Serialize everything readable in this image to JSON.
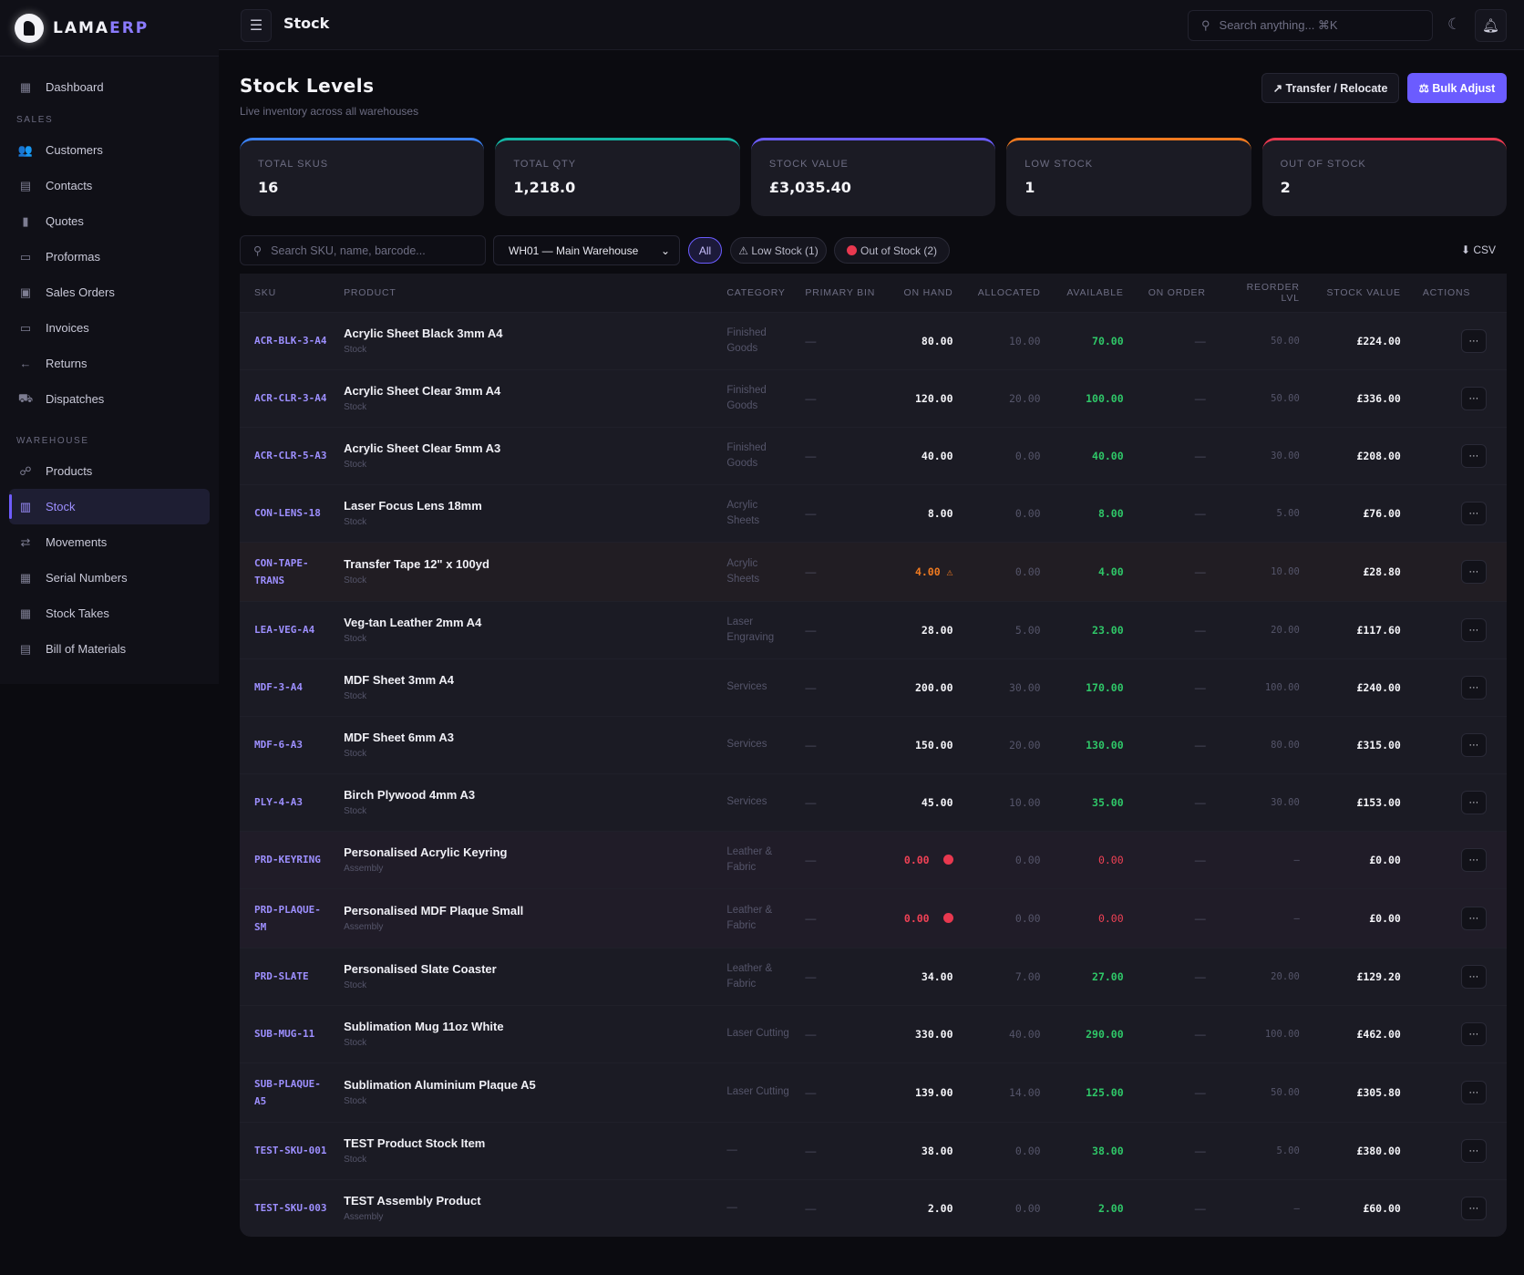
{
  "brand": {
    "name_a": "LAMA",
    "name_b": "ERP"
  },
  "sidebar": {
    "dashboard": "Dashboard",
    "sections": [
      {
        "title": "SALES",
        "items": [
          {
            "label": "Customers",
            "icon": "users-icon",
            "glyph": "👥"
          },
          {
            "label": "Contacts",
            "icon": "contact-card-icon",
            "glyph": "▤"
          },
          {
            "label": "Quotes",
            "icon": "document-icon",
            "glyph": "▮"
          },
          {
            "label": "Proformas",
            "icon": "card-icon",
            "glyph": "▭"
          },
          {
            "label": "Sales Orders",
            "icon": "person-box-icon",
            "glyph": "▣"
          },
          {
            "label": "Invoices",
            "icon": "invoice-icon",
            "glyph": "▭"
          },
          {
            "label": "Returns",
            "icon": "arrow-left-icon",
            "glyph": "←"
          },
          {
            "label": "Dispatches",
            "icon": "truck-icon",
            "glyph": "⛟"
          }
        ]
      },
      {
        "title": "WAREHOUSE",
        "items": [
          {
            "label": "Products",
            "icon": "products-icon",
            "glyph": "☍"
          },
          {
            "label": "Stock",
            "icon": "bar-chart-icon",
            "glyph": "▥",
            "active": true
          },
          {
            "label": "Movements",
            "icon": "repeat-icon",
            "glyph": "⇄"
          },
          {
            "label": "Serial Numbers",
            "icon": "serial-icon",
            "glyph": "▦"
          },
          {
            "label": "Stock Takes",
            "icon": "calendar-icon",
            "glyph": "▦"
          },
          {
            "label": "Bill of Materials",
            "icon": "list-icon",
            "glyph": "▤"
          }
        ]
      }
    ]
  },
  "topbar": {
    "title": "Stock",
    "search_placeholder": "Search anything... ⌘K"
  },
  "page": {
    "title": "Stock Levels",
    "subtitle": "Live inventory across all warehouses",
    "transfer_label": "↗ Transfer / Relocate",
    "bulk_label": "⚖ Bulk Adjust"
  },
  "cards": [
    {
      "label": "TOTAL SKUS",
      "value": "16",
      "color": "#3b82f6"
    },
    {
      "label": "TOTAL QTY",
      "value": "1,218.0",
      "color": "#14b8a6"
    },
    {
      "label": "STOCK VALUE",
      "value": "£3,035.40",
      "color": "#6b5cff"
    },
    {
      "label": "LOW STOCK",
      "value": "1",
      "color": "#f07a20"
    },
    {
      "label": "OUT OF STOCK",
      "value": "2",
      "color": "#e8384f"
    }
  ],
  "filters": {
    "search_placeholder": "Search SKU, name, barcode...",
    "warehouse": "WH01 — Main Warehouse",
    "all": "All",
    "low": "⚠ Low Stock (1)",
    "out": "Out of Stock (2)",
    "csv": "⬇ CSV"
  },
  "table": {
    "headers": [
      "SKU",
      "PRODUCT",
      "CATEGORY",
      "PRIMARY BIN",
      "ON HAND",
      "ALLOCATED",
      "AVAILABLE",
      "ON ORDER",
      "REORDER LVL",
      "STOCK VALUE",
      "ACTIONS"
    ],
    "rows": [
      {
        "sku": "ACR-BLK-3-A4",
        "name": "Acrylic Sheet Black 3mm A4",
        "type": "Stock",
        "category": "Finished Goods",
        "bin": "—",
        "on_hand": "80.00",
        "allocated": "10.00",
        "available": "70.00",
        "on_order": "—",
        "reorder": "50.00",
        "value": "£224.00",
        "status": "ok"
      },
      {
        "sku": "ACR-CLR-3-A4",
        "name": "Acrylic Sheet Clear 3mm A4",
        "type": "Stock",
        "category": "Finished Goods",
        "bin": "—",
        "on_hand": "120.00",
        "allocated": "20.00",
        "available": "100.00",
        "on_order": "—",
        "reorder": "50.00",
        "value": "£336.00",
        "status": "ok"
      },
      {
        "sku": "ACR-CLR-5-A3",
        "name": "Acrylic Sheet Clear 5mm A3",
        "type": "Stock",
        "category": "Finished Goods",
        "bin": "—",
        "on_hand": "40.00",
        "allocated": "0.00",
        "available": "40.00",
        "on_order": "—",
        "reorder": "30.00",
        "value": "£208.00",
        "status": "ok"
      },
      {
        "sku": "CON-LENS-18",
        "name": "Laser Focus Lens 18mm",
        "type": "Stock",
        "category": "Acrylic Sheets",
        "bin": "—",
        "on_hand": "8.00",
        "allocated": "0.00",
        "available": "8.00",
        "on_order": "—",
        "reorder": "5.00",
        "value": "£76.00",
        "status": "ok"
      },
      {
        "sku": "CON-TAPE-TRANS",
        "name": "Transfer Tape 12\" x 100yd",
        "type": "Stock",
        "category": "Acrylic Sheets",
        "bin": "—",
        "on_hand": "4.00",
        "allocated": "0.00",
        "available": "4.00",
        "on_order": "—",
        "reorder": "10.00",
        "value": "£28.80",
        "status": "low"
      },
      {
        "sku": "LEA-VEG-A4",
        "name": "Veg-tan Leather 2mm A4",
        "type": "Stock",
        "category": "Laser Engraving",
        "bin": "—",
        "on_hand": "28.00",
        "allocated": "5.00",
        "available": "23.00",
        "on_order": "—",
        "reorder": "20.00",
        "value": "£117.60",
        "status": "ok"
      },
      {
        "sku": "MDF-3-A4",
        "name": "MDF Sheet 3mm A4",
        "type": "Stock",
        "category": "Services",
        "bin": "—",
        "on_hand": "200.00",
        "allocated": "30.00",
        "available": "170.00",
        "on_order": "—",
        "reorder": "100.00",
        "value": "£240.00",
        "status": "ok"
      },
      {
        "sku": "MDF-6-A3",
        "name": "MDF Sheet 6mm A3",
        "type": "Stock",
        "category": "Services",
        "bin": "—",
        "on_hand": "150.00",
        "allocated": "20.00",
        "available": "130.00",
        "on_order": "—",
        "reorder": "80.00",
        "value": "£315.00",
        "status": "ok"
      },
      {
        "sku": "PLY-4-A3",
        "name": "Birch Plywood 4mm A3",
        "type": "Stock",
        "category": "Services",
        "bin": "—",
        "on_hand": "45.00",
        "allocated": "10.00",
        "available": "35.00",
        "on_order": "—",
        "reorder": "30.00",
        "value": "£153.00",
        "status": "ok"
      },
      {
        "sku": "PRD-KEYRING",
        "name": "Personalised Acrylic Keyring",
        "type": "Assembly",
        "category": "Leather & Fabric",
        "bin": "—",
        "on_hand": "0.00",
        "allocated": "0.00",
        "available": "0.00",
        "on_order": "—",
        "reorder": "—",
        "value": "£0.00",
        "status": "out"
      },
      {
        "sku": "PRD-PLAQUE-SM",
        "name": "Personalised MDF Plaque Small",
        "type": "Assembly",
        "category": "Leather & Fabric",
        "bin": "—",
        "on_hand": "0.00",
        "allocated": "0.00",
        "available": "0.00",
        "on_order": "—",
        "reorder": "—",
        "value": "£0.00",
        "status": "out"
      },
      {
        "sku": "PRD-SLATE",
        "name": "Personalised Slate Coaster",
        "type": "Stock",
        "category": "Leather & Fabric",
        "bin": "—",
        "on_hand": "34.00",
        "allocated": "7.00",
        "available": "27.00",
        "on_order": "—",
        "reorder": "20.00",
        "value": "£129.20",
        "status": "ok"
      },
      {
        "sku": "SUB-MUG-11",
        "name": "Sublimation Mug 11oz White",
        "type": "Stock",
        "category": "Laser Cutting",
        "bin": "—",
        "on_hand": "330.00",
        "allocated": "40.00",
        "available": "290.00",
        "on_order": "—",
        "reorder": "100.00",
        "value": "£462.00",
        "status": "ok"
      },
      {
        "sku": "SUB-PLAQUE-A5",
        "name": "Sublimation Aluminium Plaque A5",
        "type": "Stock",
        "category": "Laser Cutting",
        "bin": "—",
        "on_hand": "139.00",
        "allocated": "14.00",
        "available": "125.00",
        "on_order": "—",
        "reorder": "50.00",
        "value": "£305.80",
        "status": "ok"
      },
      {
        "sku": "TEST-SKU-001",
        "name": "TEST Product Stock Item",
        "type": "Stock",
        "category": "—",
        "bin": "—",
        "on_hand": "38.00",
        "allocated": "0.00",
        "available": "38.00",
        "on_order": "—",
        "reorder": "5.00",
        "value": "£380.00",
        "status": "ok"
      },
      {
        "sku": "TEST-SKU-003",
        "name": "TEST Assembly Product",
        "type": "Assembly",
        "category": "—",
        "bin": "—",
        "on_hand": "2.00",
        "allocated": "0.00",
        "available": "2.00",
        "on_order": "—",
        "reorder": "—",
        "value": "£60.00",
        "status": "ok"
      }
    ],
    "action_label": "···"
  }
}
